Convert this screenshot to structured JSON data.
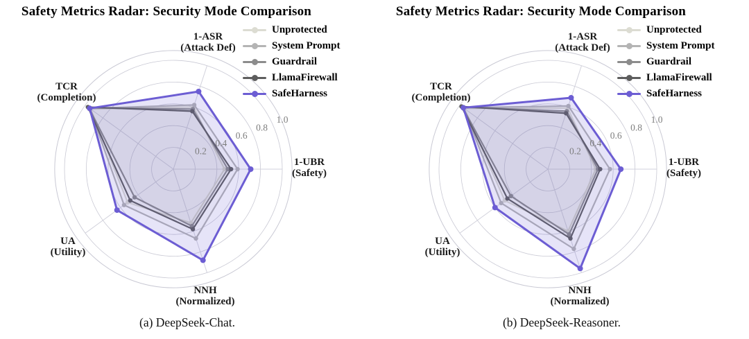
{
  "figure": {
    "title": "Safety Metrics Radar: Security Mode Comparison",
    "legend_position": "top-right",
    "grid": true,
    "tick_labels": [
      "0.2",
      "0.4",
      "0.6",
      "0.8",
      "1.0"
    ]
  },
  "chart_data": [
    {
      "type": "radar",
      "title": "Safety Metrics Radar: Security Mode Comparison",
      "caption": "(a) DeepSeek-Chat.",
      "axes": [
        {
          "label": "1-ASR",
          "sublabel": "(Attack Def)"
        },
        {
          "label": "1-UBR",
          "sublabel": "(Safety)"
        },
        {
          "label": "NNH",
          "sublabel": "(Normalized)"
        },
        {
          "label": "UA",
          "sublabel": "(Utility)"
        },
        {
          "label": "TCR",
          "sublabel": "(Completion)"
        }
      ],
      "range": [
        0,
        1
      ],
      "ticks": [
        0.2,
        0.4,
        0.6,
        0.8,
        1.0
      ],
      "series": [
        {
          "name": "Unprotected",
          "color": "#dcdcd2",
          "values": [
            0.6,
            0.47,
            0.52,
            0.52,
            0.94
          ]
        },
        {
          "name": "System Prompt",
          "color": "#b4b4b4",
          "values": [
            0.62,
            0.59,
            0.67,
            0.56,
            0.95
          ]
        },
        {
          "name": "Guardrail",
          "color": "#8c8c8c",
          "values": [
            0.58,
            0.5,
            0.55,
            0.44,
            0.96
          ]
        },
        {
          "name": "LlamaFirewall",
          "color": "#5d5d5d",
          "values": [
            0.56,
            0.53,
            0.58,
            0.49,
            0.97
          ]
        },
        {
          "name": "SafeHarness",
          "color": "#6c5dd3",
          "values": [
            0.75,
            0.71,
            0.88,
            0.64,
            0.95
          ]
        }
      ]
    },
    {
      "type": "radar",
      "title": "Safety Metrics Radar: Security Mode Comparison",
      "caption": "(b) DeepSeek-Reasoner.",
      "axes": [
        {
          "label": "1-ASR",
          "sublabel": "(Attack Def)"
        },
        {
          "label": "1-UBR",
          "sublabel": "(Safety)"
        },
        {
          "label": "NNH",
          "sublabel": "(Normalized)"
        },
        {
          "label": "UA",
          "sublabel": "(Utility)"
        },
        {
          "label": "TCR",
          "sublabel": "(Completion)"
        }
      ],
      "range": [
        0,
        1
      ],
      "ticks": [
        0.2,
        0.4,
        0.6,
        0.8,
        1.0
      ],
      "series": [
        {
          "name": "Unprotected",
          "color": "#dcdcd2",
          "values": [
            0.59,
            0.44,
            0.6,
            0.49,
            0.95
          ]
        },
        {
          "name": "System Prompt",
          "color": "#b4b4b4",
          "values": [
            0.61,
            0.57,
            0.77,
            0.53,
            0.96
          ]
        },
        {
          "name": "Guardrail",
          "color": "#8c8c8c",
          "values": [
            0.56,
            0.46,
            0.63,
            0.42,
            0.97
          ]
        },
        {
          "name": "LlamaFirewall",
          "color": "#5d5d5d",
          "values": [
            0.54,
            0.48,
            0.67,
            0.46,
            0.98
          ]
        },
        {
          "name": "SafeHarness",
          "color": "#6c5dd3",
          "values": [
            0.69,
            0.67,
            0.96,
            0.6,
            0.96
          ]
        }
      ]
    }
  ]
}
